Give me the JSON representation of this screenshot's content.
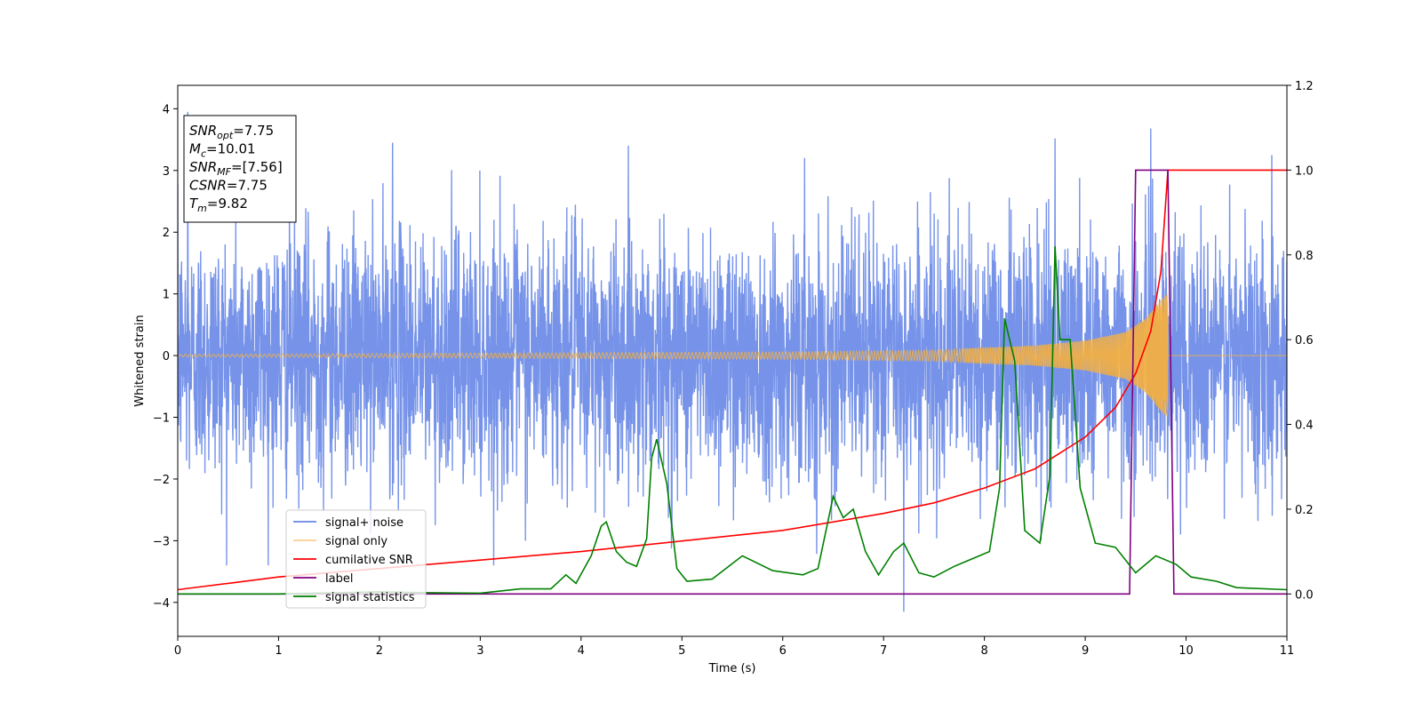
{
  "chart_data": {
    "type": "line",
    "xlabel": "Time (s)",
    "ylabel": "Whitened strain",
    "xlim": [
      0,
      11
    ],
    "ylim": [
      -4.55,
      4.38
    ],
    "y2lim": [
      -0.1,
      1.2
    ],
    "x_ticks": [
      0,
      1,
      2,
      3,
      4,
      5,
      6,
      7,
      8,
      9,
      10,
      11
    ],
    "y_ticks": [
      4,
      3,
      2,
      1,
      0,
      -1,
      -2,
      -3,
      -4
    ],
    "y2_ticks": [
      1.2,
      1.0,
      0.8,
      0.6,
      0.4,
      0.2,
      0.0
    ],
    "x_tick_labels": [
      "0",
      "1",
      "2",
      "3",
      "4",
      "5",
      "6",
      "7",
      "8",
      "9",
      "10",
      "11"
    ],
    "y_tick_labels": [
      "4",
      "3",
      "2",
      "1",
      "0",
      "−1",
      "−2",
      "−3",
      "−4"
    ],
    "y2_tick_labels": [
      "1.2",
      "1.0",
      "0.8",
      "0.6",
      "0.4",
      "0.2",
      "0.0"
    ],
    "legend_position": "lower-left",
    "annotation": {
      "lines": [
        {
          "base": "SNR",
          "sub": "opt",
          "rest": "=7.75"
        },
        {
          "base": "M",
          "sub": "c",
          "rest": "=10.01"
        },
        {
          "base": "SNR",
          "sub": "MF",
          "rest": "=[7.56]"
        },
        {
          "base": "CSNR",
          "sub": "",
          "rest": "=7.75"
        },
        {
          "base": "T",
          "sub": "m",
          "rest": "=9.82"
        }
      ]
    },
    "series": [
      {
        "name": "signal+ noise",
        "color": "#4169e1",
        "axis": "left",
        "kind": "noise",
        "std": 1.0,
        "x_range": [
          0,
          11
        ],
        "peaks": [
          [
            0.1,
            3.95
          ],
          [
            2.13,
            3.45
          ],
          [
            8.7,
            3.52
          ],
          [
            9.65,
            3.68
          ],
          [
            7.2,
            -4.15
          ],
          [
            10.85,
            3.25
          ]
        ]
      },
      {
        "name": "signal only",
        "color": "#f5b041",
        "axis": "left",
        "kind": "chirp",
        "merger_time": 9.82,
        "envelope": [
          [
            0,
            0.02
          ],
          [
            3,
            0.04
          ],
          [
            6,
            0.06
          ],
          [
            7.5,
            0.09
          ],
          [
            8.5,
            0.16
          ],
          [
            9.0,
            0.24
          ],
          [
            9.4,
            0.38
          ],
          [
            9.6,
            0.6
          ],
          [
            9.75,
            0.9
          ],
          [
            9.82,
            1.0
          ],
          [
            9.83,
            0
          ]
        ]
      },
      {
        "name": "cumilative SNR",
        "color": "#ff0000",
        "axis": "right",
        "points": [
          [
            0,
            0.01
          ],
          [
            0.5,
            0.025
          ],
          [
            1,
            0.04
          ],
          [
            2,
            0.06
          ],
          [
            3,
            0.08
          ],
          [
            4,
            0.1
          ],
          [
            5,
            0.125
          ],
          [
            6,
            0.15
          ],
          [
            7,
            0.19
          ],
          [
            7.5,
            0.215
          ],
          [
            8,
            0.25
          ],
          [
            8.5,
            0.295
          ],
          [
            9,
            0.37
          ],
          [
            9.3,
            0.44
          ],
          [
            9.5,
            0.52
          ],
          [
            9.65,
            0.62
          ],
          [
            9.75,
            0.76
          ],
          [
            9.82,
            1.0
          ],
          [
            11,
            1.0
          ]
        ]
      },
      {
        "name": "label",
        "color": "#800080",
        "axis": "right",
        "points": [
          [
            0,
            0.0
          ],
          [
            9.44,
            0.0
          ],
          [
            9.5,
            1.0
          ],
          [
            9.82,
            1.0
          ],
          [
            9.88,
            0.0
          ],
          [
            11,
            0.0
          ]
        ]
      },
      {
        "name": "signal statistics",
        "color": "#008000",
        "axis": "right",
        "points": [
          [
            0,
            0.0
          ],
          [
            1,
            0.0
          ],
          [
            2,
            0.005
          ],
          [
            2.5,
            0.003
          ],
          [
            3,
            0.002
          ],
          [
            3.4,
            0.012
          ],
          [
            3.7,
            0.012
          ],
          [
            3.85,
            0.045
          ],
          [
            3.95,
            0.025
          ],
          [
            4.1,
            0.09
          ],
          [
            4.2,
            0.16
          ],
          [
            4.25,
            0.17
          ],
          [
            4.35,
            0.1
          ],
          [
            4.45,
            0.075
          ],
          [
            4.55,
            0.065
          ],
          [
            4.65,
            0.13
          ],
          [
            4.7,
            0.32
          ],
          [
            4.75,
            0.365
          ],
          [
            4.85,
            0.26
          ],
          [
            4.95,
            0.06
          ],
          [
            5.05,
            0.03
          ],
          [
            5.3,
            0.035
          ],
          [
            5.6,
            0.09
          ],
          [
            5.9,
            0.055
          ],
          [
            6.2,
            0.045
          ],
          [
            6.35,
            0.06
          ],
          [
            6.5,
            0.23
          ],
          [
            6.6,
            0.18
          ],
          [
            6.7,
            0.2
          ],
          [
            6.82,
            0.1
          ],
          [
            6.95,
            0.045
          ],
          [
            7.1,
            0.1
          ],
          [
            7.2,
            0.12
          ],
          [
            7.35,
            0.05
          ],
          [
            7.5,
            0.04
          ],
          [
            7.7,
            0.065
          ],
          [
            7.9,
            0.085
          ],
          [
            8.05,
            0.1
          ],
          [
            8.15,
            0.25
          ],
          [
            8.2,
            0.65
          ],
          [
            8.3,
            0.55
          ],
          [
            8.4,
            0.15
          ],
          [
            8.55,
            0.12
          ],
          [
            8.65,
            0.28
          ],
          [
            8.7,
            0.82
          ],
          [
            8.75,
            0.6
          ],
          [
            8.85,
            0.6
          ],
          [
            8.95,
            0.25
          ],
          [
            9.1,
            0.12
          ],
          [
            9.3,
            0.11
          ],
          [
            9.5,
            0.05
          ],
          [
            9.7,
            0.09
          ],
          [
            9.9,
            0.07
          ],
          [
            10.05,
            0.04
          ],
          [
            10.3,
            0.03
          ],
          [
            10.5,
            0.015
          ],
          [
            11,
            0.01
          ]
        ]
      }
    ]
  }
}
